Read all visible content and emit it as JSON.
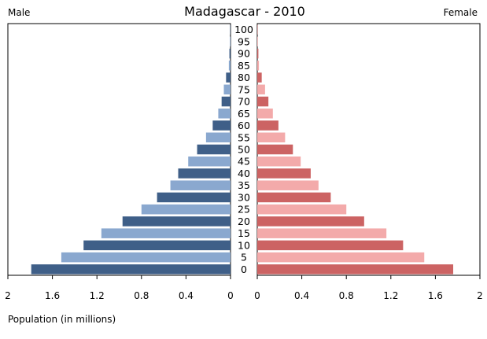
{
  "chart_data": {
    "type": "bar",
    "title": "Madagascar - 2010",
    "left_label": "Male",
    "right_label": "Female",
    "xlabel": "Population (in millions)",
    "xlim": [
      0,
      2
    ],
    "left_ticks": [
      "2",
      "1.6",
      "1.2",
      "0.8",
      "0.4",
      "0"
    ],
    "right_ticks": [
      "0",
      "0.4",
      "0.8",
      "1.2",
      "1.6",
      "2"
    ],
    "tick_values": [
      2,
      1.6,
      1.2,
      0.8,
      0.4,
      0
    ],
    "right_tick_values": [
      0,
      0.4,
      0.8,
      1.2,
      1.6,
      2
    ],
    "categories": [
      "0",
      "5",
      "10",
      "15",
      "20",
      "25",
      "30",
      "35",
      "40",
      "45",
      "50",
      "55",
      "60",
      "65",
      "70",
      "75",
      "80",
      "85",
      "90",
      "95",
      "100"
    ],
    "series": [
      {
        "name": "Male",
        "values": [
          1.79,
          1.52,
          1.32,
          1.16,
          0.97,
          0.8,
          0.66,
          0.54,
          0.47,
          0.38,
          0.3,
          0.22,
          0.16,
          0.11,
          0.08,
          0.06,
          0.04,
          0.015,
          0.01,
          0.005,
          0.003
        ]
      },
      {
        "name": "Female",
        "values": [
          1.76,
          1.5,
          1.31,
          1.16,
          0.96,
          0.8,
          0.66,
          0.55,
          0.48,
          0.39,
          0.32,
          0.25,
          0.19,
          0.14,
          0.1,
          0.07,
          0.04,
          0.015,
          0.01,
          0.005,
          0.003
        ]
      }
    ],
    "colors": {
      "male_dark": "#3f5f88",
      "male_light": "#8aa8cf",
      "female_dark": "#cc6363",
      "female_light": "#f3aaaa"
    },
    "grid": false
  }
}
